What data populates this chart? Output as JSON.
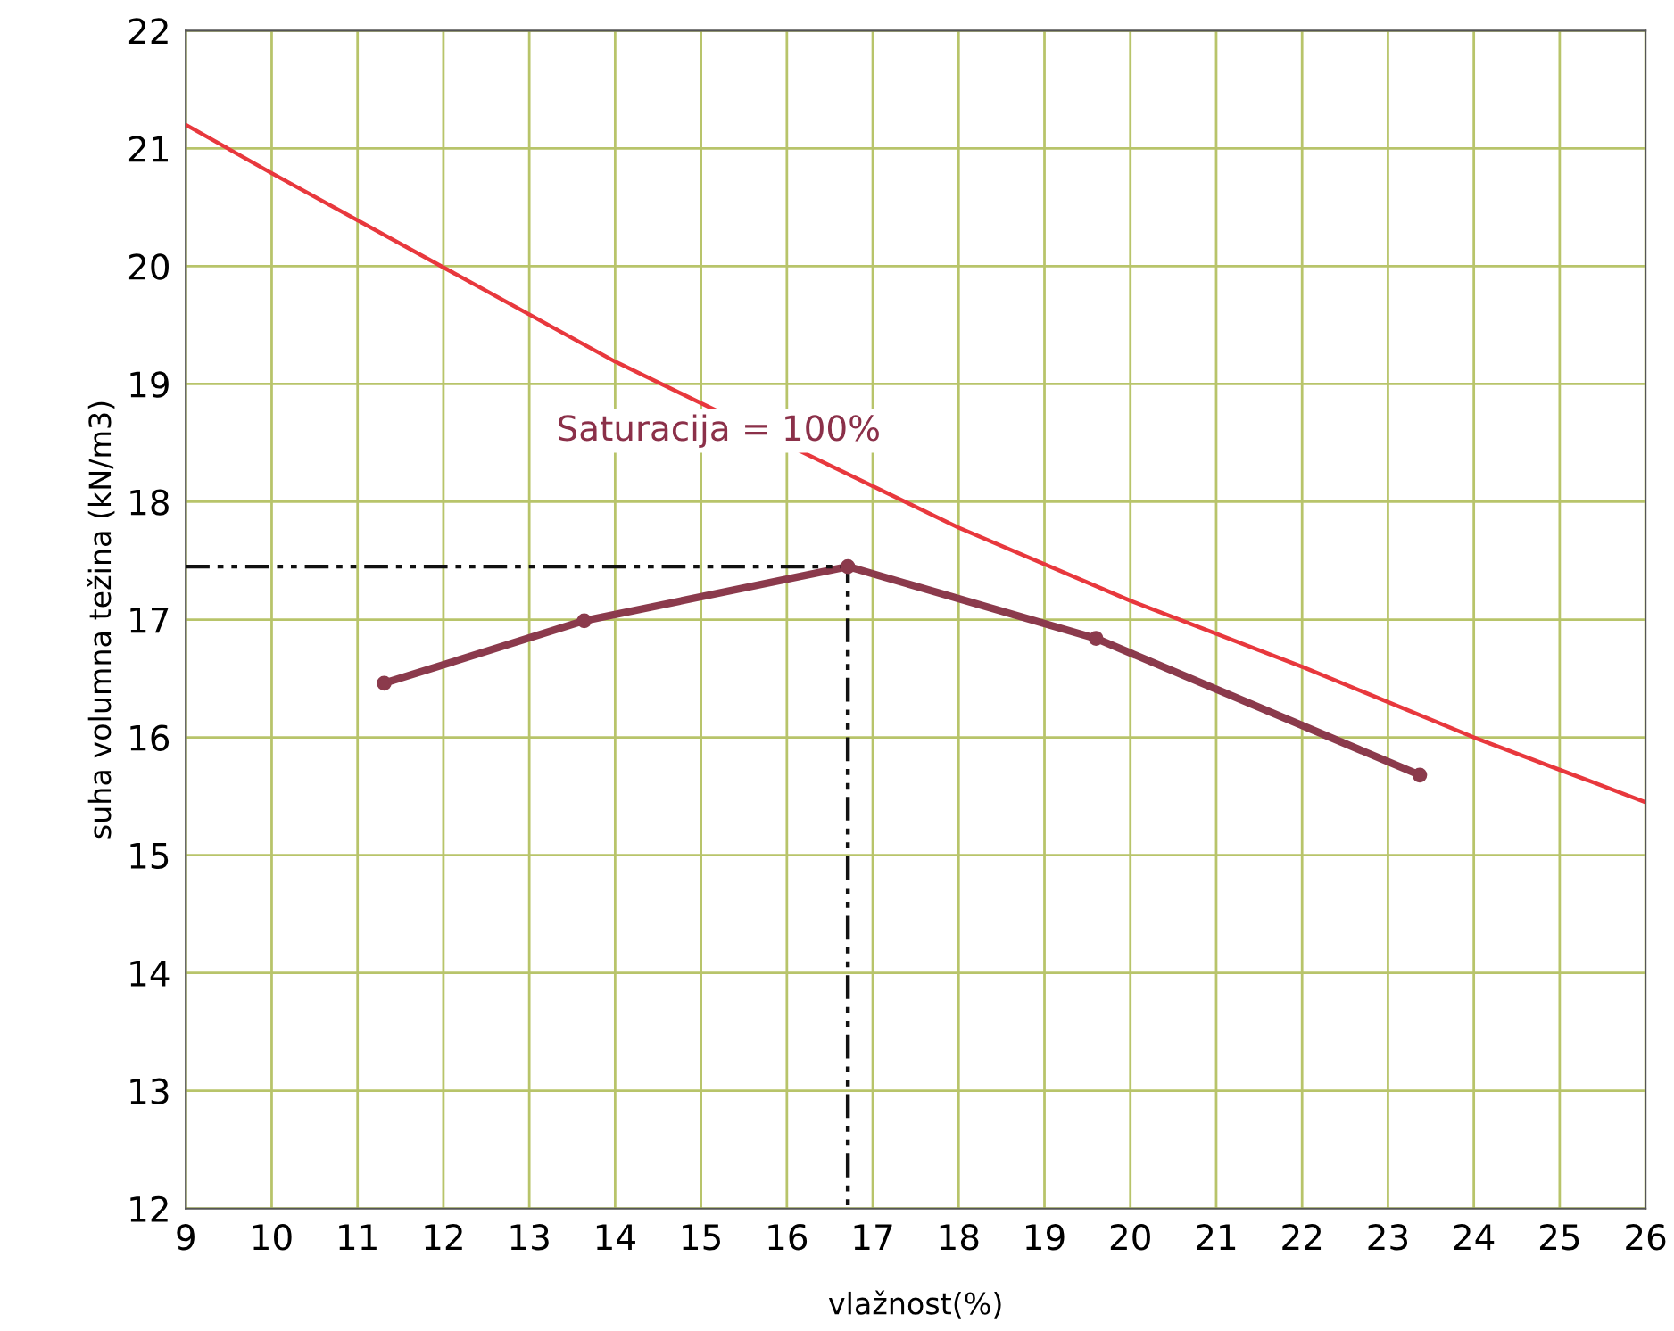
{
  "chart_data": {
    "type": "line",
    "xlabel": "vlažnost(%)",
    "ylabel": "suha volumna težina (kN/m3)",
    "xlim": [
      9,
      26
    ],
    "xticks": [
      9,
      10,
      11,
      12,
      13,
      14,
      15,
      16,
      17,
      18,
      19,
      20,
      21,
      22,
      23,
      24,
      25,
      26
    ],
    "ylim": [
      12,
      22
    ],
    "yticks": [
      12,
      13,
      14,
      15,
      16,
      17,
      18,
      19,
      20,
      21,
      22
    ],
    "grid": true,
    "series": [
      {
        "color": "#e8383d",
        "marker": "none",
        "line_style": "solid",
        "x": [
          9,
          10,
          12,
          14,
          18,
          20,
          22,
          24,
          26
        ],
        "values": [
          21.2,
          20.79,
          19.99,
          19.19,
          17.78,
          17.16,
          16.6,
          16.0,
          15.45
        ]
      },
      {
        "color": "#8b3a4c",
        "marker": "circle",
        "line_style": "solid",
        "x": [
          11.31,
          13.64,
          16.71,
          19.6,
          23.37
        ],
        "values": [
          16.46,
          16.99,
          17.45,
          16.84,
          15.68
        ]
      },
      {
        "color": "#111111",
        "marker": "none",
        "line_style": "dashed",
        "x": [
          9,
          16.71,
          16.71
        ],
        "values": [
          17.45,
          17.45,
          12
        ]
      }
    ],
    "annotations": [
      "Saturacija = 100%"
    ]
  }
}
